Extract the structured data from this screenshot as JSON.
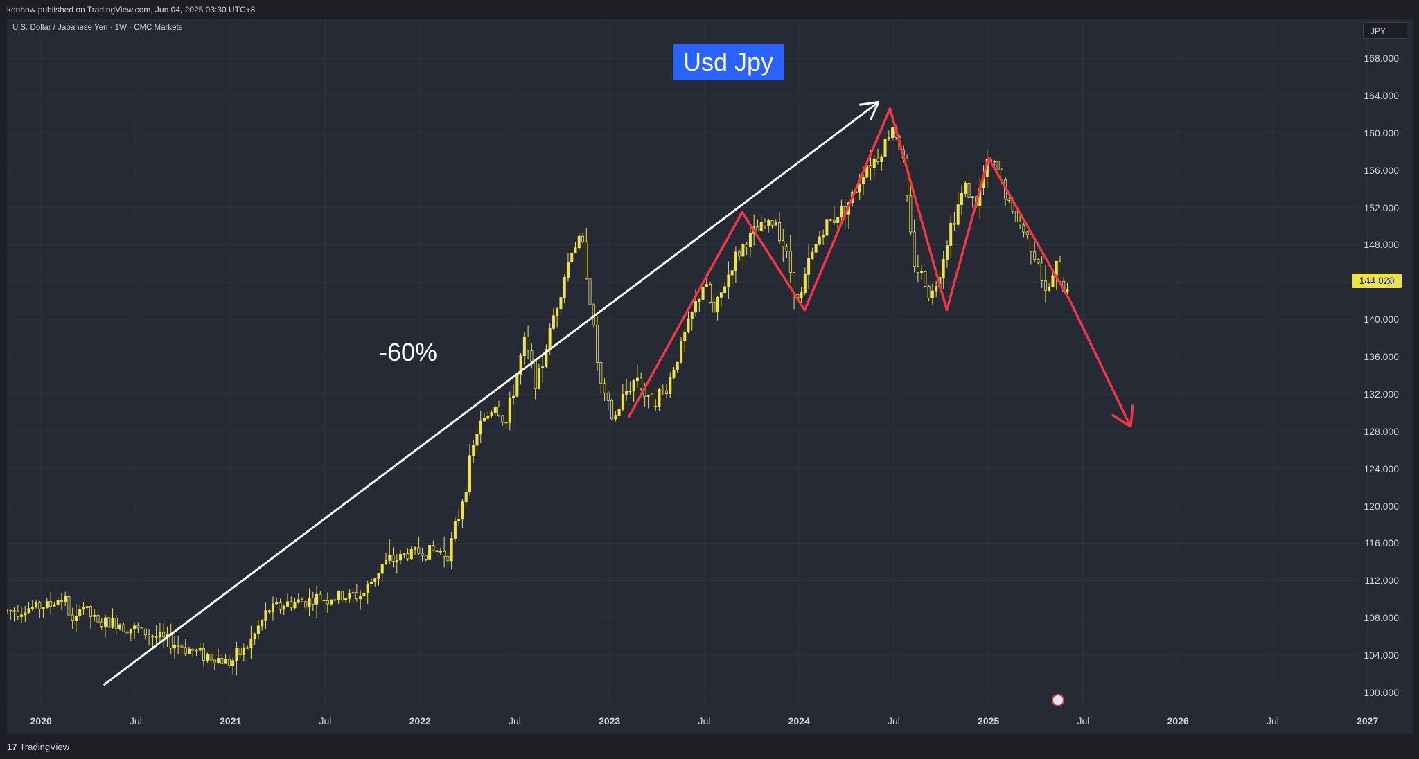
{
  "header": {
    "published": "konhow published on TradingView.com, Jun 04, 2025 03:30 UTC+8"
  },
  "symbol": "U.S. Dollar / Japanese Yen · 1W · CMC Markets",
  "currency": "JPY",
  "title_box": "Usd Jpy",
  "annotation": "-60%",
  "last_price": "144.020",
  "brand": {
    "logo": "17",
    "name": "TradingView"
  },
  "colors": {
    "candle": "#f0e442",
    "pattern": "#f23645",
    "trendline": "#ffffff",
    "title_bg": "#2962ff"
  },
  "event_icon": "us-flag-icon",
  "chart_data": {
    "type": "candlestick",
    "title": "U.S. Dollar / Japanese Yen · 1W · CMC Markets",
    "ylim": [
      98.5,
      171.5
    ],
    "y_ticks": [
      "168.000",
      "164.000",
      "160.000",
      "156.000",
      "152.000",
      "148.000",
      "144.000",
      "140.000",
      "136.000",
      "132.000",
      "128.000",
      "124.000",
      "120.000",
      "116.000",
      "112.000",
      "108.000",
      "104.000",
      "100.000"
    ],
    "x_ticks": [
      {
        "t": 2020.0,
        "label": "2020",
        "year": true
      },
      {
        "t": 2020.5,
        "label": "Jul",
        "year": false
      },
      {
        "t": 2021.0,
        "label": "2021",
        "year": true
      },
      {
        "t": 2021.5,
        "label": "Jul",
        "year": false
      },
      {
        "t": 2022.0,
        "label": "2022",
        "year": true
      },
      {
        "t": 2022.5,
        "label": "Jul",
        "year": false
      },
      {
        "t": 2023.0,
        "label": "2023",
        "year": true
      },
      {
        "t": 2023.5,
        "label": "Jul",
        "year": false
      },
      {
        "t": 2024.0,
        "label": "2024",
        "year": true
      },
      {
        "t": 2024.5,
        "label": "Jul",
        "year": false
      },
      {
        "t": 2025.0,
        "label": "2025",
        "year": true
      },
      {
        "t": 2025.5,
        "label": "Jul",
        "year": false
      },
      {
        "t": 2026.0,
        "label": "2026",
        "year": true
      },
      {
        "t": 2026.5,
        "label": "Jul",
        "year": false
      },
      {
        "t": 2027.0,
        "label": "2027",
        "year": true
      }
    ],
    "time_range": [
      2019.82,
      2026.95
    ],
    "price_anchors": [
      [
        2019.82,
        108.7
      ],
      [
        2020.05,
        109.4
      ],
      [
        2020.12,
        110.3
      ],
      [
        2020.18,
        106.5
      ],
      [
        2020.2,
        109.8
      ],
      [
        2020.3,
        107.3
      ],
      [
        2020.4,
        107.5
      ],
      [
        2020.6,
        106.0
      ],
      [
        2020.8,
        104.5
      ],
      [
        2020.95,
        103.5
      ],
      [
        2021.0,
        103.2
      ],
      [
        2021.1,
        105.2
      ],
      [
        2021.2,
        108.8
      ],
      [
        2021.3,
        109.5
      ],
      [
        2021.45,
        110.0
      ],
      [
        2021.6,
        110.2
      ],
      [
        2021.7,
        110.5
      ],
      [
        2021.8,
        113.7
      ],
      [
        2021.95,
        115.0
      ],
      [
        2022.05,
        115.2
      ],
      [
        2022.15,
        115.0
      ],
      [
        2022.2,
        118.5
      ],
      [
        2022.3,
        128.0
      ],
      [
        2022.4,
        131.0
      ],
      [
        2022.45,
        128.5
      ],
      [
        2022.55,
        137.5
      ],
      [
        2022.62,
        133.0
      ],
      [
        2022.7,
        140.0
      ],
      [
        2022.8,
        147.5
      ],
      [
        2022.85,
        148.7
      ],
      [
        2022.88,
        145.0
      ],
      [
        2022.95,
        133.0
      ],
      [
        2023.02,
        129.0
      ],
      [
        2023.08,
        132.0
      ],
      [
        2023.15,
        134.0
      ],
      [
        2023.2,
        131.0
      ],
      [
        2023.3,
        132.5
      ],
      [
        2023.4,
        138.5
      ],
      [
        2023.5,
        144.0
      ],
      [
        2023.55,
        140.5
      ],
      [
        2023.65,
        146.0
      ],
      [
        2023.72,
        148.3
      ],
      [
        2023.8,
        149.8
      ],
      [
        2023.88,
        150.5
      ],
      [
        2023.93,
        147.2
      ],
      [
        2024.0,
        141.5
      ],
      [
        2024.05,
        146.0
      ],
      [
        2024.12,
        149.5
      ],
      [
        2024.2,
        151.2
      ],
      [
        2024.28,
        153.0
      ],
      [
        2024.35,
        156.5
      ],
      [
        2024.42,
        157.5
      ],
      [
        2024.5,
        161.0
      ],
      [
        2024.55,
        157.0
      ],
      [
        2024.6,
        146.5
      ],
      [
        2024.7,
        142.5
      ],
      [
        2024.72,
        143.5
      ],
      [
        2024.8,
        150.0
      ],
      [
        2024.88,
        154.5
      ],
      [
        2024.93,
        152.0
      ],
      [
        2025.0,
        157.0
      ],
      [
        2025.05,
        156.0
      ],
      [
        2025.12,
        151.5
      ],
      [
        2025.2,
        149.0
      ],
      [
        2025.26,
        146.5
      ],
      [
        2025.3,
        142.5
      ],
      [
        2025.36,
        145.5
      ],
      [
        2025.4,
        143.0
      ],
      [
        2025.42,
        144.02
      ]
    ],
    "pattern_red": [
      [
        2023.1,
        129.5
      ],
      [
        2023.7,
        151.5
      ],
      [
        2024.03,
        141.0
      ],
      [
        2024.48,
        162.6
      ],
      [
        2024.78,
        141.0
      ],
      [
        2025.0,
        157.3
      ],
      [
        2025.43,
        142.0
      ],
      [
        2025.75,
        128.5
      ]
    ],
    "trendline_white": [
      [
        2020.33,
        100.8
      ],
      [
        2024.42,
        163.3
      ]
    ]
  }
}
